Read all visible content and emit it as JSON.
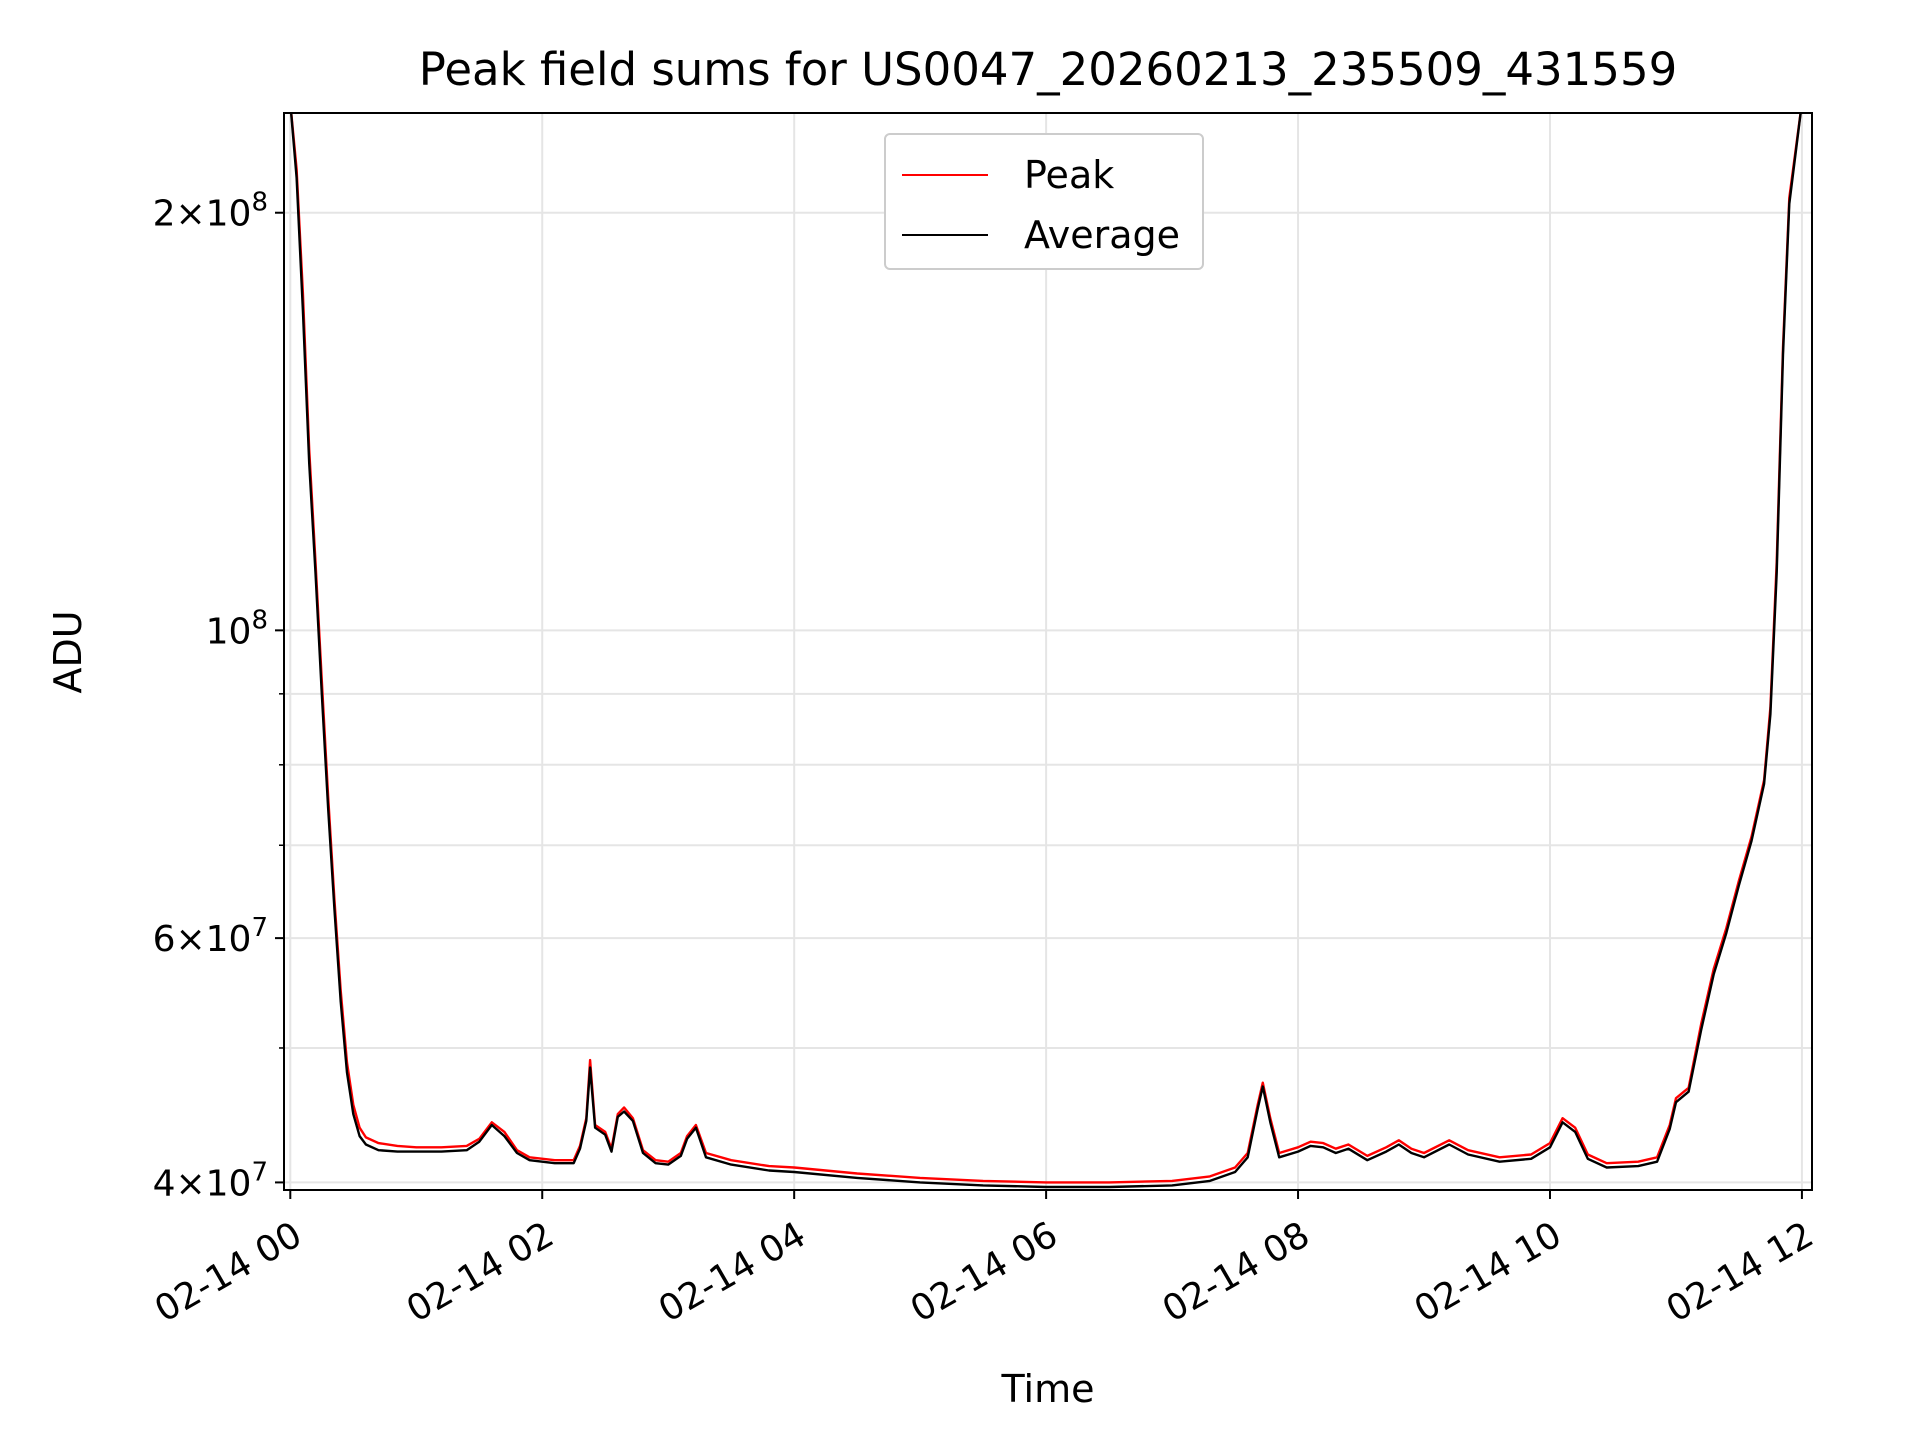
{
  "chart_data": {
    "type": "line",
    "title": "Peak field sums for US0047_20260213_235509_431559",
    "xlabel": "Time",
    "ylabel": "ADU",
    "yscale": "log",
    "xlim": [
      -0.05,
      12.08
    ],
    "ylim": [
      39500000,
      236000000
    ],
    "grid": true,
    "legend": {
      "placement": "top-center",
      "entries": [
        "Peak",
        "Average"
      ]
    },
    "x_ticks": [
      {
        "value": 0,
        "label": "02-14 00"
      },
      {
        "value": 2,
        "label": "02-14 02"
      },
      {
        "value": 4,
        "label": "02-14 04"
      },
      {
        "value": 6,
        "label": "02-14 06"
      },
      {
        "value": 8,
        "label": "02-14 08"
      },
      {
        "value": 10,
        "label": "02-14 10"
      },
      {
        "value": 12,
        "label": "02-14 12"
      }
    ],
    "y_ticks_major": [
      {
        "value": 40000000,
        "base": "4",
        "exp": "7"
      },
      {
        "value": 60000000,
        "base": "6",
        "exp": "7"
      },
      {
        "value": 100000000,
        "base": "10",
        "exp": "8"
      },
      {
        "value": 200000000,
        "base": "2",
        "exp": "8"
      }
    ],
    "y_ticks_minor": [
      50000000,
      70000000,
      80000000,
      90000000
    ],
    "x_unit": "hours after 02-14 00:00",
    "series": [
      {
        "name": "Peak",
        "color": "#ff0000",
        "points": [
          [
            0.0,
            240000000
          ],
          [
            0.05,
            215000000
          ],
          [
            0.1,
            175000000
          ],
          [
            0.15,
            135000000
          ],
          [
            0.2,
            112000000
          ],
          [
            0.25,
            92000000
          ],
          [
            0.3,
            76000000
          ],
          [
            0.35,
            64000000
          ],
          [
            0.4,
            55000000
          ],
          [
            0.45,
            48800000
          ],
          [
            0.5,
            45500000
          ],
          [
            0.55,
            43800000
          ],
          [
            0.6,
            43100000
          ],
          [
            0.7,
            42700000
          ],
          [
            0.85,
            42500000
          ],
          [
            1.0,
            42400000
          ],
          [
            1.2,
            42400000
          ],
          [
            1.4,
            42500000
          ],
          [
            1.5,
            43000000
          ],
          [
            1.6,
            44200000
          ],
          [
            1.7,
            43500000
          ],
          [
            1.8,
            42200000
          ],
          [
            1.9,
            41700000
          ],
          [
            2.1,
            41500000
          ],
          [
            2.25,
            41500000
          ],
          [
            2.3,
            42500000
          ],
          [
            2.35,
            44500000
          ],
          [
            2.38,
            49000000
          ],
          [
            2.42,
            44000000
          ],
          [
            2.5,
            43500000
          ],
          [
            2.55,
            42300000
          ],
          [
            2.6,
            44800000
          ],
          [
            2.65,
            45300000
          ],
          [
            2.72,
            44500000
          ],
          [
            2.8,
            42200000
          ],
          [
            2.9,
            41500000
          ],
          [
            3.0,
            41400000
          ],
          [
            3.1,
            42000000
          ],
          [
            3.15,
            43200000
          ],
          [
            3.22,
            44000000
          ],
          [
            3.3,
            42000000
          ],
          [
            3.5,
            41500000
          ],
          [
            3.8,
            41100000
          ],
          [
            4.0,
            41000000
          ],
          [
            4.5,
            40600000
          ],
          [
            5.0,
            40300000
          ],
          [
            5.5,
            40100000
          ],
          [
            6.0,
            40000000
          ],
          [
            6.5,
            40000000
          ],
          [
            7.0,
            40100000
          ],
          [
            7.3,
            40400000
          ],
          [
            7.5,
            41000000
          ],
          [
            7.6,
            42000000
          ],
          [
            7.68,
            45500000
          ],
          [
            7.72,
            47200000
          ],
          [
            7.78,
            44500000
          ],
          [
            7.85,
            42000000
          ],
          [
            8.0,
            42400000
          ],
          [
            8.1,
            42800000
          ],
          [
            8.2,
            42700000
          ],
          [
            8.3,
            42300000
          ],
          [
            8.4,
            42600000
          ],
          [
            8.55,
            41800000
          ],
          [
            8.7,
            42400000
          ],
          [
            8.8,
            42900000
          ],
          [
            8.9,
            42300000
          ],
          [
            9.0,
            42000000
          ],
          [
            9.2,
            42900000
          ],
          [
            9.35,
            42200000
          ],
          [
            9.6,
            41700000
          ],
          [
            9.85,
            41900000
          ],
          [
            10.0,
            42700000
          ],
          [
            10.1,
            44500000
          ],
          [
            10.2,
            43800000
          ],
          [
            10.3,
            41900000
          ],
          [
            10.45,
            41300000
          ],
          [
            10.7,
            41400000
          ],
          [
            10.85,
            41700000
          ],
          [
            10.95,
            44000000
          ],
          [
            11.0,
            46000000
          ],
          [
            11.1,
            46800000
          ],
          [
            11.2,
            52000000
          ],
          [
            11.3,
            57000000
          ],
          [
            11.4,
            61000000
          ],
          [
            11.5,
            66000000
          ],
          [
            11.6,
            71000000
          ],
          [
            11.7,
            78000000
          ],
          [
            11.75,
            88000000
          ],
          [
            11.8,
            112000000
          ],
          [
            11.85,
            160000000
          ],
          [
            11.9,
            205000000
          ],
          [
            12.0,
            240000000
          ]
        ]
      },
      {
        "name": "Average",
        "color": "#000000",
        "points": [
          [
            0.0,
            240000000
          ],
          [
            0.05,
            212000000
          ],
          [
            0.1,
            170000000
          ],
          [
            0.15,
            132000000
          ],
          [
            0.2,
            110000000
          ],
          [
            0.25,
            90000000
          ],
          [
            0.3,
            74500000
          ],
          [
            0.35,
            63000000
          ],
          [
            0.4,
            54000000
          ],
          [
            0.45,
            48000000
          ],
          [
            0.5,
            44800000
          ],
          [
            0.55,
            43200000
          ],
          [
            0.6,
            42600000
          ],
          [
            0.7,
            42200000
          ],
          [
            0.85,
            42100000
          ],
          [
            1.0,
            42100000
          ],
          [
            1.2,
            42100000
          ],
          [
            1.4,
            42200000
          ],
          [
            1.5,
            42800000
          ],
          [
            1.6,
            44000000
          ],
          [
            1.7,
            43200000
          ],
          [
            1.8,
            42000000
          ],
          [
            1.9,
            41500000
          ],
          [
            2.1,
            41300000
          ],
          [
            2.25,
            41300000
          ],
          [
            2.3,
            42300000
          ],
          [
            2.35,
            44300000
          ],
          [
            2.38,
            48400000
          ],
          [
            2.42,
            43800000
          ],
          [
            2.5,
            43300000
          ],
          [
            2.55,
            42100000
          ],
          [
            2.6,
            44600000
          ],
          [
            2.65,
            45000000
          ],
          [
            2.72,
            44300000
          ],
          [
            2.8,
            42000000
          ],
          [
            2.9,
            41300000
          ],
          [
            3.0,
            41200000
          ],
          [
            3.1,
            41800000
          ],
          [
            3.15,
            43000000
          ],
          [
            3.22,
            43800000
          ],
          [
            3.3,
            41700000
          ],
          [
            3.5,
            41200000
          ],
          [
            3.8,
            40800000
          ],
          [
            4.0,
            40700000
          ],
          [
            4.5,
            40300000
          ],
          [
            5.0,
            40000000
          ],
          [
            5.5,
            39800000
          ],
          [
            6.0,
            39700000
          ],
          [
            6.5,
            39700000
          ],
          [
            7.0,
            39800000
          ],
          [
            7.3,
            40100000
          ],
          [
            7.5,
            40700000
          ],
          [
            7.6,
            41700000
          ],
          [
            7.68,
            45200000
          ],
          [
            7.72,
            46900000
          ],
          [
            7.78,
            44200000
          ],
          [
            7.85,
            41700000
          ],
          [
            8.0,
            42100000
          ],
          [
            8.1,
            42500000
          ],
          [
            8.2,
            42400000
          ],
          [
            8.3,
            42000000
          ],
          [
            8.4,
            42300000
          ],
          [
            8.55,
            41500000
          ],
          [
            8.7,
            42100000
          ],
          [
            8.8,
            42600000
          ],
          [
            8.9,
            42000000
          ],
          [
            9.0,
            41700000
          ],
          [
            9.2,
            42600000
          ],
          [
            9.35,
            41900000
          ],
          [
            9.6,
            41400000
          ],
          [
            9.85,
            41600000
          ],
          [
            10.0,
            42400000
          ],
          [
            10.1,
            44200000
          ],
          [
            10.2,
            43500000
          ],
          [
            10.3,
            41600000
          ],
          [
            10.45,
            41000000
          ],
          [
            10.7,
            41100000
          ],
          [
            10.85,
            41400000
          ],
          [
            10.95,
            43700000
          ],
          [
            11.0,
            45700000
          ],
          [
            11.1,
            46500000
          ],
          [
            11.2,
            51500000
          ],
          [
            11.3,
            56500000
          ],
          [
            11.4,
            60500000
          ],
          [
            11.5,
            65500000
          ],
          [
            11.6,
            70500000
          ],
          [
            11.7,
            77500000
          ],
          [
            11.75,
            87000000
          ],
          [
            11.8,
            110000000
          ],
          [
            11.85,
            158000000
          ],
          [
            11.9,
            203000000
          ],
          [
            12.0,
            240000000
          ]
        ]
      }
    ]
  }
}
